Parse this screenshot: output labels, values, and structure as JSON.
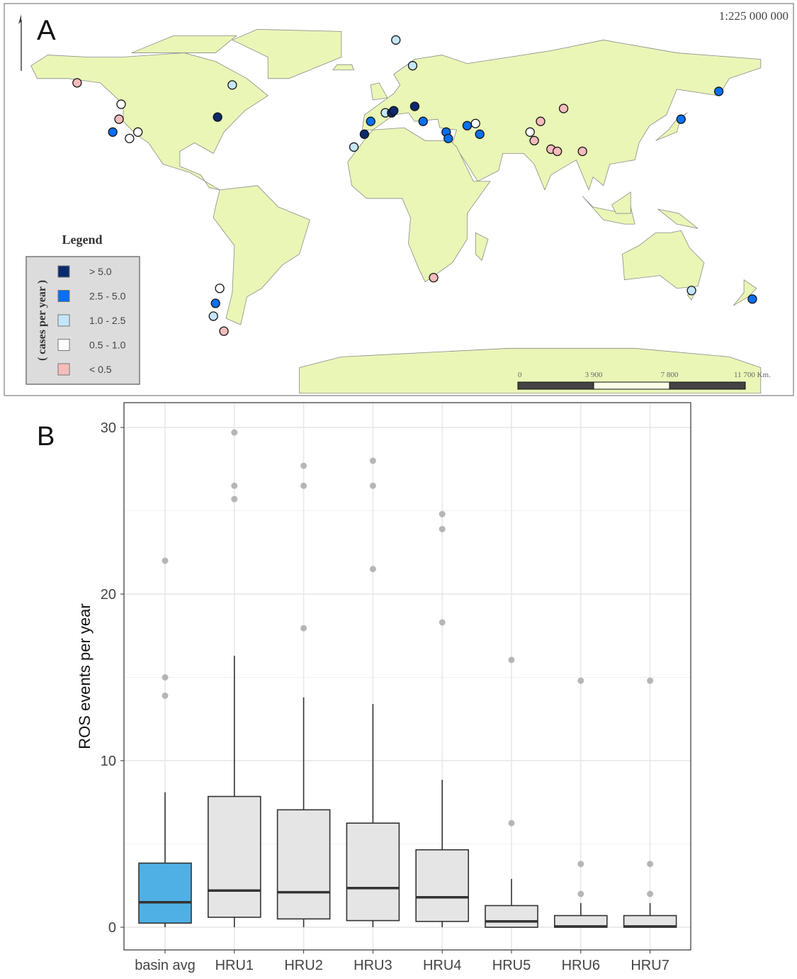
{
  "panel_a": {
    "label": "A",
    "scale_ratio": "1:225 000 000",
    "colors": {
      "land": "#e9f6b6",
      "sea": "#ffffff",
      "coast": "#8a8a8a"
    },
    "legend": {
      "title": "Legend",
      "axis_label": "( cases per year )",
      "classes": [
        {
          "key": "gt5",
          "label": "> 5.0",
          "color": "#0b2a6e"
        },
        {
          "key": "2.5-5",
          "label": "2.5 - 5.0",
          "color": "#0a6ff0"
        },
        {
          "key": "1-2.5",
          "label": "1.0 - 2.5",
          "color": "#c4e6fa"
        },
        {
          "key": "0.5-1",
          "label": "0.5 - 1.0",
          "color": "#ffffff"
        },
        {
          "key": "lt0.5",
          "label": "< 0.5",
          "color": "#f6bcbc"
        }
      ]
    },
    "scale_bar": {
      "ticks": [
        "0",
        "3 900",
        "7 800",
        "11 700 Km."
      ]
    }
  },
  "chart_data": [
    {
      "type": "scatter",
      "description_kind": "point map",
      "points": [
        {
          "lon": -146,
          "lat": 58,
          "class": "lt0.5"
        },
        {
          "lon": -125,
          "lat": 48,
          "class": "0.5-1"
        },
        {
          "lon": -126,
          "lat": 41,
          "class": "lt0.5"
        },
        {
          "lon": -129,
          "lat": 35,
          "class": "2.5-5"
        },
        {
          "lon": -121,
          "lat": 32,
          "class": "0.5-1"
        },
        {
          "lon": -117,
          "lat": 35,
          "class": "0.5-1"
        },
        {
          "lon": -72,
          "lat": 57,
          "class": "1-2.5"
        },
        {
          "lon": -79,
          "lat": 42,
          "class": "gt5"
        },
        {
          "lon": 6,
          "lat": 78,
          "class": "1-2.5"
        },
        {
          "lon": 14,
          "lat": 66,
          "class": "1-2.5"
        },
        {
          "lon": -6,
          "lat": 40,
          "class": "2.5-5"
        },
        {
          "lon": 1,
          "lat": 44,
          "class": "1-2.5"
        },
        {
          "lon": 4,
          "lat": 44,
          "class": "gt5"
        },
        {
          "lon": 5,
          "lat": 45,
          "class": "gt5"
        },
        {
          "lon": 15,
          "lat": 47,
          "class": "gt5"
        },
        {
          "lon": 19,
          "lat": 40,
          "class": "2.5-5"
        },
        {
          "lon": -9,
          "lat": 34,
          "class": "gt5"
        },
        {
          "lon": -14,
          "lat": 28,
          "class": "1-2.5"
        },
        {
          "lon": 30,
          "lat": 35,
          "class": "2.5-5"
        },
        {
          "lon": 31,
          "lat": 32,
          "class": "2.5-5"
        },
        {
          "lon": 40,
          "lat": 38,
          "class": "2.5-5"
        },
        {
          "lon": 44,
          "lat": 39,
          "class": "0.5-1"
        },
        {
          "lon": 46,
          "lat": 34,
          "class": "2.5-5"
        },
        {
          "lon": 70,
          "lat": 35,
          "class": "0.5-1"
        },
        {
          "lon": 72,
          "lat": 31,
          "class": "lt0.5"
        },
        {
          "lon": 75,
          "lat": 40,
          "class": "lt0.5"
        },
        {
          "lon": 86,
          "lat": 46,
          "class": "lt0.5"
        },
        {
          "lon": 80,
          "lat": 27,
          "class": "lt0.5"
        },
        {
          "lon": 83,
          "lat": 26,
          "class": "lt0.5"
        },
        {
          "lon": 95,
          "lat": 26,
          "class": "lt0.5"
        },
        {
          "lon": 142,
          "lat": 41,
          "class": "2.5-5"
        },
        {
          "lon": 160,
          "lat": 54,
          "class": "2.5-5"
        },
        {
          "lon": 24,
          "lat": -33,
          "class": "lt0.5"
        },
        {
          "lon": -78,
          "lat": -38,
          "class": "0.5-1"
        },
        {
          "lon": -80,
          "lat": -45,
          "class": "2.5-5"
        },
        {
          "lon": -81,
          "lat": -51,
          "class": "1-2.5"
        },
        {
          "lon": -76,
          "lat": -58,
          "class": "lt0.5"
        },
        {
          "lon": 147,
          "lat": -39,
          "class": "1-2.5"
        },
        {
          "lon": 176,
          "lat": -43,
          "class": "2.5-5"
        }
      ]
    },
    {
      "type": "box",
      "panel_label": "B",
      "ylabel": "ROS events per year",
      "xlabel": "",
      "ylim": [
        -0.7,
        31.2
      ],
      "yticks": [
        "0",
        "10",
        "20",
        "30"
      ],
      "grid": true,
      "categories": [
        "basin avg",
        "HRU1",
        "HRU2",
        "HRU3",
        "HRU4",
        "HRU5",
        "HRU6",
        "HRU7"
      ],
      "fill_colors": [
        "#4fb0e6",
        "#e5e5e5",
        "#e5e5e5",
        "#e5e5e5",
        "#e5e5e5",
        "#e5e5e5",
        "#e5e5e5",
        "#e5e5e5"
      ],
      "boxes": [
        {
          "min": 0,
          "q1": 0.25,
          "median": 1.5,
          "q3": 3.85,
          "max": 8.1,
          "outliers": [
            22.0,
            15.0,
            13.9
          ]
        },
        {
          "min": 0,
          "q1": 0.6,
          "median": 2.2,
          "q3": 7.85,
          "max": 16.3,
          "outliers": [
            29.7,
            26.5,
            25.7
          ]
        },
        {
          "min": 0,
          "q1": 0.5,
          "median": 2.1,
          "q3": 7.05,
          "max": 13.8,
          "outliers": [
            27.7,
            26.5,
            17.95
          ]
        },
        {
          "min": 0,
          "q1": 0.4,
          "median": 2.35,
          "q3": 6.25,
          "max": 13.4,
          "outliers": [
            28.0,
            26.5,
            21.5
          ]
        },
        {
          "min": 0,
          "q1": 0.35,
          "median": 1.8,
          "q3": 4.65,
          "max": 8.85,
          "outliers": [
            24.8,
            23.9,
            18.3
          ]
        },
        {
          "min": 0,
          "q1": 0.0,
          "median": 0.35,
          "q3": 1.3,
          "max": 2.9,
          "outliers": [
            16.05,
            6.25
          ]
        },
        {
          "min": 0,
          "q1": 0.0,
          "median": 0.05,
          "q3": 0.7,
          "max": 1.45,
          "outliers": [
            14.8,
            3.8,
            2.0
          ]
        },
        {
          "min": 0,
          "q1": 0.0,
          "median": 0.05,
          "q3": 0.7,
          "max": 1.45,
          "outliers": [
            14.8,
            3.8,
            2.0
          ]
        }
      ]
    }
  ]
}
